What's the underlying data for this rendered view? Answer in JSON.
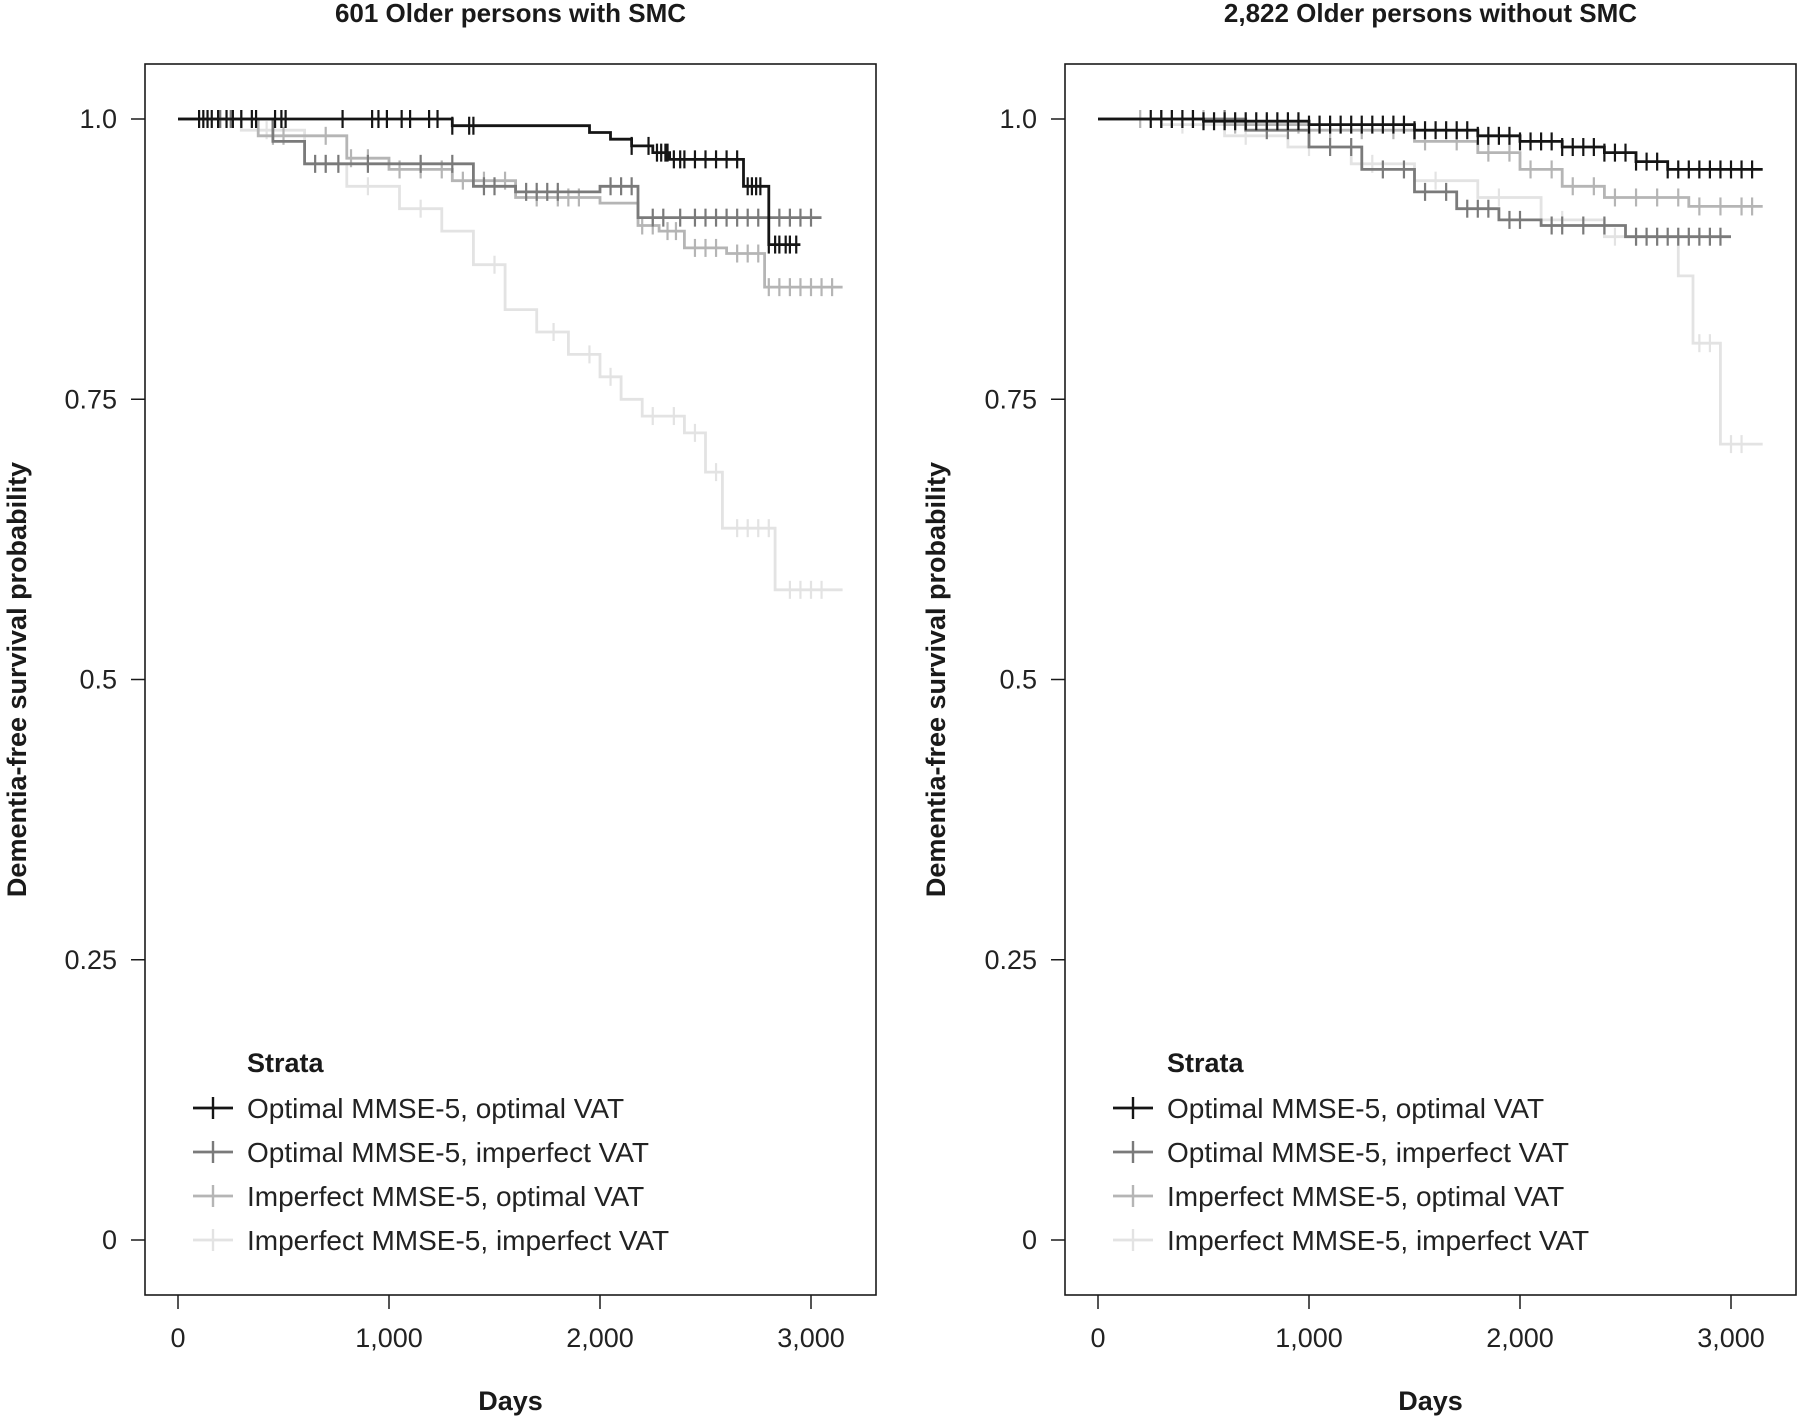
{
  "chart_data": [
    {
      "type": "line",
      "title": "601 Older persons with SMC",
      "xlabel": "Days",
      "ylabel": "Dementia-free survival probability",
      "xlim": [
        -150,
        3150
      ],
      "ylim": [
        -0.05,
        1.05
      ],
      "x_ticks": [
        0,
        1000,
        2000,
        3000
      ],
      "x_tick_labels": [
        "0",
        "1,000",
        "2,000",
        "3,000"
      ],
      "y_ticks": [
        0,
        0.25,
        0.5,
        0.75,
        1.0
      ],
      "y_tick_labels": [
        "0",
        "0.25",
        "0.5",
        "0.75",
        "1.0"
      ],
      "grid": false,
      "legend": {
        "title": "Strata",
        "position": "bottom-left",
        "entries": [
          "Optimal MMSE-5, optimal VAT",
          "Optimal MMSE-5, imperfect VAT",
          "Imperfect MMSE-5, optimal VAT",
          "Imperfect MMSE-5, imperfect VAT"
        ]
      },
      "series": [
        {
          "name": "Optimal MMSE-5, optimal VAT",
          "color": "#151515",
          "points": [
            [
              0,
              1.0
            ],
            [
              1300,
              1.0
            ],
            [
              1300,
              0.994
            ],
            [
              1950,
              0.994
            ],
            [
              1950,
              0.988
            ],
            [
              2050,
              0.988
            ],
            [
              2050,
              0.982
            ],
            [
              2150,
              0.982
            ],
            [
              2150,
              0.976
            ],
            [
              2250,
              0.976
            ],
            [
              2250,
              0.97
            ],
            [
              2330,
              0.97
            ],
            [
              2330,
              0.964
            ],
            [
              2680,
              0.964
            ],
            [
              2680,
              0.94
            ],
            [
              2800,
              0.94
            ],
            [
              2800,
              0.888
            ],
            [
              2950,
              0.888
            ]
          ],
          "censor_x": [
            100,
            120,
            140,
            160,
            190,
            230,
            260,
            300,
            350,
            370,
            460,
            490,
            510,
            780,
            920,
            950,
            990,
            1060,
            1100,
            1190,
            1230,
            1300,
            1380,
            1400,
            2150,
            2230,
            2270,
            2290,
            2310,
            2320,
            2350,
            2380,
            2400,
            2450,
            2500,
            2550,
            2600,
            2650,
            2700,
            2720,
            2740,
            2760,
            2800,
            2830,
            2850,
            2880,
            2900,
            2930
          ]
        },
        {
          "name": "Optimal MMSE-5, imperfect VAT",
          "color": "#7a7a7a",
          "points": [
            [
              0,
              1.0
            ],
            [
              450,
              1.0
            ],
            [
              450,
              0.98
            ],
            [
              600,
              0.98
            ],
            [
              600,
              0.96
            ],
            [
              1400,
              0.96
            ],
            [
              1400,
              0.94
            ],
            [
              1600,
              0.94
            ],
            [
              1600,
              0.935
            ],
            [
              2000,
              0.935
            ],
            [
              2000,
              0.94
            ],
            [
              2180,
              0.94
            ],
            [
              2180,
              0.912
            ],
            [
              3050,
              0.912
            ]
          ],
          "censor_x": [
            200,
            250,
            650,
            700,
            760,
            900,
            1150,
            1300,
            1450,
            1500,
            1650,
            1700,
            1750,
            1800,
            2050,
            2100,
            2150,
            2250,
            2300,
            2380,
            2450,
            2500,
            2550,
            2600,
            2650,
            2700,
            2750,
            2800,
            2850,
            2900,
            2950,
            3000
          ]
        },
        {
          "name": "Imperfect MMSE-5, optimal VAT",
          "color": "#b5b5b5",
          "points": [
            [
              0,
              1.0
            ],
            [
              380,
              1.0
            ],
            [
              380,
              0.985
            ],
            [
              800,
              0.985
            ],
            [
              800,
              0.965
            ],
            [
              1000,
              0.965
            ],
            [
              1000,
              0.955
            ],
            [
              1300,
              0.955
            ],
            [
              1300,
              0.945
            ],
            [
              1600,
              0.945
            ],
            [
              1600,
              0.93
            ],
            [
              2000,
              0.93
            ],
            [
              2000,
              0.925
            ],
            [
              2180,
              0.925
            ],
            [
              2180,
              0.905
            ],
            [
              2280,
              0.905
            ],
            [
              2280,
              0.9
            ],
            [
              2400,
              0.9
            ],
            [
              2400,
              0.885
            ],
            [
              2600,
              0.885
            ],
            [
              2600,
              0.88
            ],
            [
              2780,
              0.88
            ],
            [
              2780,
              0.85
            ],
            [
              3150,
              0.85
            ]
          ],
          "censor_x": [
            260,
            300,
            450,
            500,
            700,
            820,
            900,
            1050,
            1150,
            1250,
            1350,
            1450,
            1550,
            1700,
            1800,
            1850,
            1900,
            2200,
            2250,
            2320,
            2360,
            2450,
            2500,
            2550,
            2650,
            2700,
            2750,
            2800,
            2850,
            2900,
            2950,
            3000,
            3050,
            3100
          ]
        },
        {
          "name": "Imperfect MMSE-5, imperfect VAT",
          "color": "#e3e3e3",
          "points": [
            [
              0,
              1.0
            ],
            [
              300,
              1.0
            ],
            [
              300,
              0.99
            ],
            [
              600,
              0.99
            ],
            [
              600,
              0.96
            ],
            [
              800,
              0.96
            ],
            [
              800,
              0.94
            ],
            [
              1050,
              0.94
            ],
            [
              1050,
              0.92
            ],
            [
              1250,
              0.92
            ],
            [
              1250,
              0.9
            ],
            [
              1400,
              0.9
            ],
            [
              1400,
              0.87
            ],
            [
              1550,
              0.87
            ],
            [
              1550,
              0.83
            ],
            [
              1700,
              0.83
            ],
            [
              1700,
              0.81
            ],
            [
              1850,
              0.81
            ],
            [
              1850,
              0.79
            ],
            [
              2000,
              0.79
            ],
            [
              2000,
              0.77
            ],
            [
              2100,
              0.77
            ],
            [
              2100,
              0.75
            ],
            [
              2200,
              0.75
            ],
            [
              2200,
              0.735
            ],
            [
              2400,
              0.735
            ],
            [
              2400,
              0.72
            ],
            [
              2500,
              0.72
            ],
            [
              2500,
              0.685
            ],
            [
              2580,
              0.685
            ],
            [
              2580,
              0.635
            ],
            [
              2830,
              0.635
            ],
            [
              2830,
              0.58
            ],
            [
              3150,
              0.58
            ]
          ],
          "censor_x": [
            200,
            420,
            700,
            900,
            1150,
            1500,
            1780,
            1950,
            2050,
            2250,
            2350,
            2450,
            2550,
            2650,
            2700,
            2750,
            2800,
            2900,
            2950,
            3000,
            3050
          ]
        }
      ]
    },
    {
      "type": "line",
      "title": "2,822 Older persons without SMC",
      "xlabel": "Days",
      "ylabel": "Dementia-free survival probability",
      "xlim": [
        -150,
        3150
      ],
      "ylim": [
        -0.05,
        1.05
      ],
      "x_ticks": [
        0,
        1000,
        2000,
        3000
      ],
      "x_tick_labels": [
        "0",
        "1,000",
        "2,000",
        "3,000"
      ],
      "y_ticks": [
        0,
        0.25,
        0.5,
        0.75,
        1.0
      ],
      "y_tick_labels": [
        "0",
        "0.25",
        "0.5",
        "0.75",
        "1.0"
      ],
      "grid": false,
      "legend": {
        "title": "Strata",
        "position": "bottom-left",
        "entries": [
          "Optimal MMSE-5, optimal VAT",
          "Optimal MMSE-5, imperfect VAT",
          "Imperfect MMSE-5, optimal VAT",
          "Imperfect MMSE-5, imperfect VAT"
        ]
      },
      "series": [
        {
          "name": "Optimal MMSE-5, optimal VAT",
          "color": "#151515",
          "points": [
            [
              0,
              1.0
            ],
            [
              500,
              1.0
            ],
            [
              500,
              0.998
            ],
            [
              1000,
              0.998
            ],
            [
              1000,
              0.995
            ],
            [
              1500,
              0.995
            ],
            [
              1500,
              0.99
            ],
            [
              1800,
              0.99
            ],
            [
              1800,
              0.985
            ],
            [
              2000,
              0.985
            ],
            [
              2000,
              0.98
            ],
            [
              2200,
              0.98
            ],
            [
              2200,
              0.975
            ],
            [
              2400,
              0.975
            ],
            [
              2400,
              0.97
            ],
            [
              2550,
              0.97
            ],
            [
              2550,
              0.962
            ],
            [
              2700,
              0.962
            ],
            [
              2700,
              0.955
            ],
            [
              3150,
              0.955
            ]
          ],
          "censor_x": [
            250,
            300,
            350,
            400,
            450,
            500,
            550,
            600,
            650,
            700,
            750,
            800,
            850,
            900,
            950,
            1000,
            1050,
            1100,
            1150,
            1200,
            1250,
            1300,
            1350,
            1400,
            1450,
            1500,
            1550,
            1600,
            1650,
            1700,
            1750,
            1800,
            1850,
            1900,
            1950,
            2000,
            2050,
            2100,
            2150,
            2200,
            2250,
            2300,
            2350,
            2400,
            2450,
            2500,
            2550,
            2600,
            2650,
            2700,
            2750,
            2800,
            2850,
            2900,
            2950,
            3000,
            3050,
            3100
          ]
        },
        {
          "name": "Optimal MMSE-5, imperfect VAT",
          "color": "#7a7a7a",
          "points": [
            [
              0,
              1.0
            ],
            [
              700,
              1.0
            ],
            [
              700,
              0.99
            ],
            [
              1000,
              0.99
            ],
            [
              1000,
              0.975
            ],
            [
              1250,
              0.975
            ],
            [
              1250,
              0.955
            ],
            [
              1500,
              0.955
            ],
            [
              1500,
              0.935
            ],
            [
              1700,
              0.935
            ],
            [
              1700,
              0.92
            ],
            [
              1900,
              0.92
            ],
            [
              1900,
              0.91
            ],
            [
              2100,
              0.91
            ],
            [
              2100,
              0.905
            ],
            [
              2500,
              0.905
            ],
            [
              2500,
              0.895
            ],
            [
              3000,
              0.895
            ]
          ],
          "censor_x": [
            300,
            450,
            600,
            800,
            900,
            1100,
            1200,
            1350,
            1450,
            1550,
            1650,
            1750,
            1800,
            1850,
            1950,
            2000,
            2150,
            2200,
            2300,
            2400,
            2550,
            2600,
            2650,
            2700,
            2750,
            2800,
            2850,
            2900,
            2950
          ]
        },
        {
          "name": "Imperfect MMSE-5, optimal VAT",
          "color": "#b5b5b5",
          "points": [
            [
              0,
              1.0
            ],
            [
              600,
              1.0
            ],
            [
              600,
              0.995
            ],
            [
              1000,
              0.995
            ],
            [
              1000,
              0.99
            ],
            [
              1500,
              0.99
            ],
            [
              1500,
              0.98
            ],
            [
              1800,
              0.98
            ],
            [
              1800,
              0.97
            ],
            [
              2000,
              0.97
            ],
            [
              2000,
              0.955
            ],
            [
              2200,
              0.955
            ],
            [
              2200,
              0.94
            ],
            [
              2400,
              0.94
            ],
            [
              2400,
              0.93
            ],
            [
              2800,
              0.93
            ],
            [
              2800,
              0.922
            ],
            [
              3150,
              0.922
            ]
          ],
          "censor_x": [
            200,
            350,
            500,
            650,
            800,
            950,
            1100,
            1250,
            1400,
            1550,
            1700,
            1850,
            1950,
            2050,
            2150,
            2250,
            2350,
            2450,
            2550,
            2650,
            2750,
            2850,
            2950,
            3050,
            3100
          ]
        },
        {
          "name": "Imperfect MMSE-5, imperfect VAT",
          "color": "#e3e3e3",
          "points": [
            [
              0,
              1.0
            ],
            [
              300,
              1.0
            ],
            [
              300,
              0.995
            ],
            [
              600,
              0.995
            ],
            [
              600,
              0.985
            ],
            [
              900,
              0.985
            ],
            [
              900,
              0.975
            ],
            [
              1200,
              0.975
            ],
            [
              1200,
              0.96
            ],
            [
              1500,
              0.96
            ],
            [
              1500,
              0.945
            ],
            [
              1800,
              0.945
            ],
            [
              1800,
              0.93
            ],
            [
              2100,
              0.93
            ],
            [
              2100,
              0.91
            ],
            [
              2400,
              0.91
            ],
            [
              2400,
              0.895
            ],
            [
              2750,
              0.895
            ],
            [
              2750,
              0.86
            ],
            [
              2820,
              0.86
            ],
            [
              2820,
              0.8
            ],
            [
              2950,
              0.8
            ],
            [
              2950,
              0.71
            ],
            [
              3150,
              0.71
            ]
          ],
          "censor_x": [
            400,
            700,
            1000,
            1300,
            1600,
            1900,
            2200,
            2450,
            2550,
            2650,
            2850,
            2900,
            3000,
            3050
          ]
        }
      ]
    }
  ]
}
